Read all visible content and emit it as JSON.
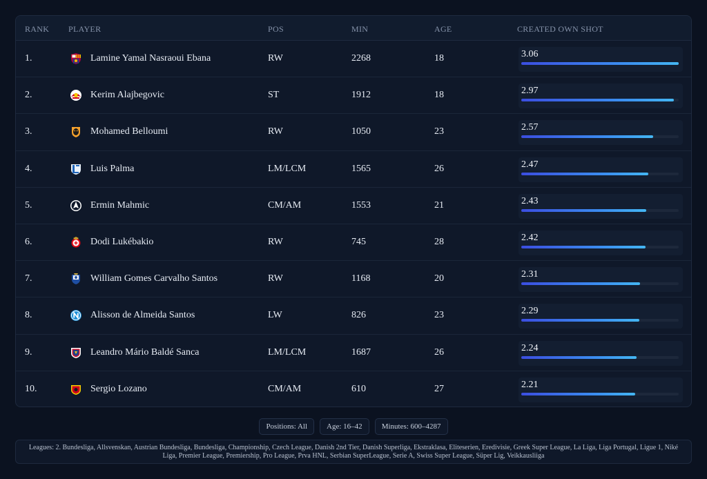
{
  "table": {
    "headers": {
      "rank": "RANK",
      "player": "PLAYER",
      "pos": "POS",
      "min": "MIN",
      "age": "AGE",
      "stat": "CREATED OWN SHOT"
    },
    "stat_max": 3.06,
    "rows": [
      {
        "rank": "1.",
        "player": "Lamine Yamal Nasraoui Ebana",
        "pos": "RW",
        "min": "2268",
        "age": "18",
        "value": "3.06",
        "crest": "barcelona-crest-icon"
      },
      {
        "rank": "2.",
        "player": "Kerim Alajbegovic",
        "pos": "ST",
        "min": "1912",
        "age": "18",
        "value": "2.97",
        "crest": "salzburg-crest-icon"
      },
      {
        "rank": "3.",
        "player": "Mohamed Belloumi",
        "pos": "RW",
        "min": "1050",
        "age": "23",
        "value": "2.57",
        "crest": "hull-city-crest-icon"
      },
      {
        "rank": "4.",
        "player": "Luis Palma",
        "pos": "LM/LCM",
        "min": "1565",
        "age": "26",
        "value": "2.47",
        "crest": "lech-poznan-crest-icon"
      },
      {
        "rank": "5.",
        "player": "Ermin Mahmic",
        "pos": "CM/AM",
        "min": "1553",
        "age": "21",
        "value": "2.43",
        "crest": "slovan-liberec-crest-icon"
      },
      {
        "rank": "6.",
        "player": "Dodi Lukébakio",
        "pos": "RW",
        "min": "745",
        "age": "28",
        "value": "2.42",
        "crest": "benfica-crest-icon"
      },
      {
        "rank": "7.",
        "player": "William Gomes Carvalho Santos",
        "pos": "RW",
        "min": "1168",
        "age": "20",
        "value": "2.31",
        "crest": "porto-crest-icon"
      },
      {
        "rank": "8.",
        "player": "Alisson de Almeida Santos",
        "pos": "LW",
        "min": "826",
        "age": "23",
        "value": "2.29",
        "crest": "napoli-crest-icon"
      },
      {
        "rank": "9.",
        "player": "Leandro Mário Baldé Sanca",
        "pos": "LM/LCM",
        "min": "1687",
        "age": "26",
        "value": "2.24",
        "crest": "piast-gliwice-crest-icon"
      },
      {
        "rank": "10.",
        "player": "Sergio Lozano",
        "pos": "CM/AM",
        "min": "610",
        "age": "27",
        "value": "2.21",
        "crest": "jagiellonia-crest-icon"
      }
    ]
  },
  "filters": {
    "positions": "Positions: All",
    "age": "Age: 16–42",
    "minutes": "Minutes: 600–4287"
  },
  "leagues": "Leagues: 2. Bundesliga, Allsvenskan, Austrian Bundesliga, Bundesliga, Championship, Czech League, Danish 2nd Tier, Danish Superliga, Ekstraklasa, Eliteserien, Eredivisie, Greek Super League, La Liga, Liga Portugal, Ligue 1, Niké Liga, Premier League, Premiership, Pro League, Prva HNL, Serbian SuperLeague, Serie A, Swiss Super League, Süper Lig, Veikkausliiga",
  "colors": {
    "background": "#0b1220",
    "card": "#0f1829",
    "bar_start": "#3b4ee0",
    "bar_end": "#44b6f2"
  }
}
